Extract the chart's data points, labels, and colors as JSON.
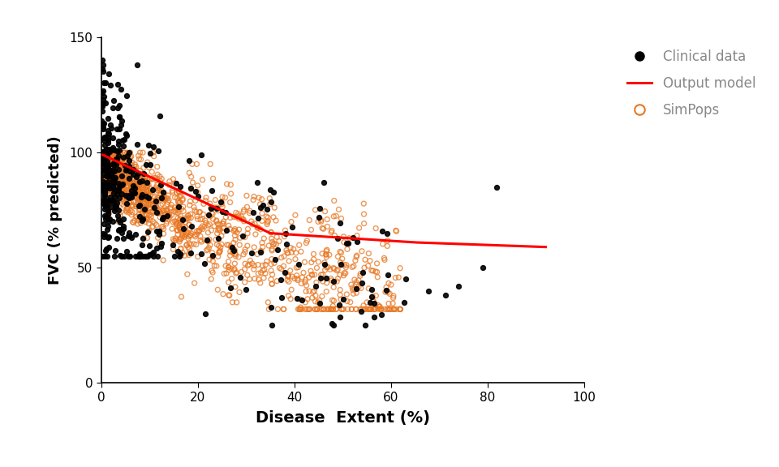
{
  "title": "",
  "xlabel": "Disease  Extent (%)",
  "ylabel": "FVC (% predicted)",
  "xlim": [
    0,
    100
  ],
  "ylim": [
    0,
    150
  ],
  "xticks": [
    0,
    20,
    40,
    60,
    80,
    100
  ],
  "yticks": [
    0,
    50,
    100,
    150
  ],
  "clinical_color": "#000000",
  "simpops_color": "#E87722",
  "model_color": "#FF0000",
  "legend_labels": [
    "Clinical data",
    "Output model",
    "SimPops"
  ],
  "legend_text_color": "#888888",
  "background_color": "#ffffff",
  "model_line_x": [
    0.3,
    35,
    65,
    92
  ],
  "model_line_y": [
    99,
    65,
    61,
    59
  ],
  "seed": 42
}
